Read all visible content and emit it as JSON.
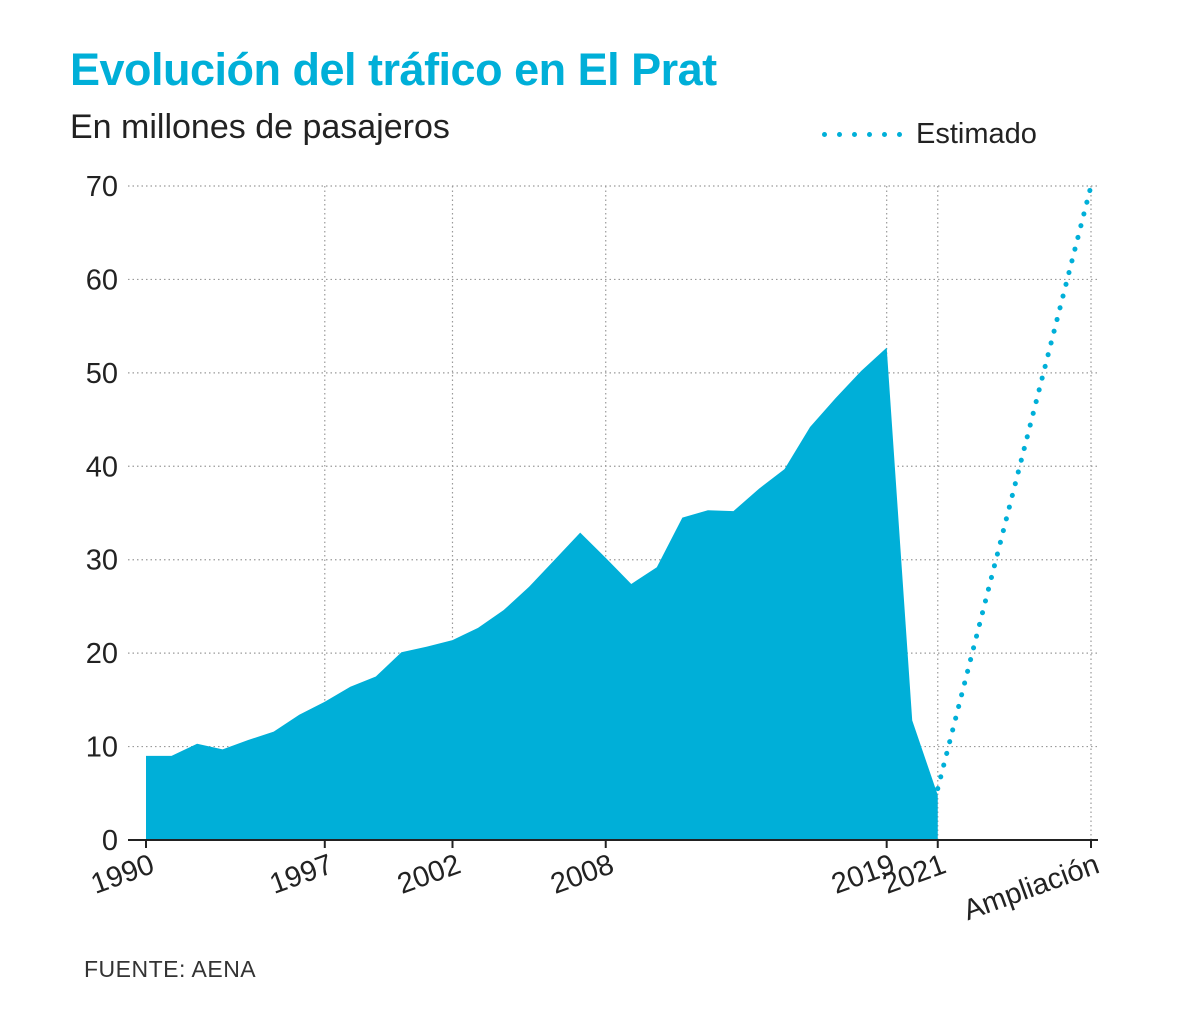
{
  "title": "Evolución del tráfico en El Prat",
  "subtitle": "En millones de pasajeros",
  "source": "FUENTE: AENA",
  "legend": {
    "estimated_label": "Estimado"
  },
  "colors": {
    "accent": "#00afd8",
    "grid": "#9a9a9a",
    "axis": "#222222"
  },
  "chart_data": {
    "type": "area",
    "title": "Evolución del tráfico en El Prat",
    "subtitle": "En millones de pasajeros",
    "xlabel": "",
    "ylabel": "",
    "ylim": [
      0,
      70
    ],
    "yticks": [
      0,
      10,
      20,
      30,
      40,
      50,
      60,
      70
    ],
    "xlim": [
      1990,
      2027
    ],
    "xtick_labels": [
      {
        "label": "1990",
        "x": 1990
      },
      {
        "label": "1997",
        "x": 1997
      },
      {
        "label": "2002",
        "x": 2002
      },
      {
        "label": "2008",
        "x": 2008
      },
      {
        "label": "2019",
        "x": 2019
      },
      {
        "label": "2021",
        "x": 2021
      },
      {
        "label": "Ampliación",
        "x": 2027
      }
    ],
    "grid": true,
    "legend_position": "top-right",
    "series": [
      {
        "x": [
          1990,
          1991,
          1992,
          1993,
          1994,
          1995,
          1996,
          1997,
          1998,
          1999,
          2000,
          2001,
          2002,
          2003,
          2004,
          2005,
          2006,
          2007,
          2008,
          2009,
          2010,
          2011,
          2012,
          2013,
          2014,
          2015,
          2016,
          2017,
          2018,
          2019,
          2020,
          2021
        ],
        "values": [
          9.0,
          9.0,
          10.3,
          9.7,
          10.7,
          11.6,
          13.4,
          14.8,
          16.4,
          17.5,
          20.1,
          20.7,
          21.4,
          22.7,
          24.6,
          27.1,
          30.0,
          32.9,
          30.2,
          27.4,
          29.2,
          34.5,
          35.3,
          35.2,
          37.6,
          39.7,
          44.2,
          47.3,
          50.2,
          52.7,
          12.8,
          4.8
        ],
        "style": "filled-area"
      },
      {
        "name": "Estimado",
        "x": [
          2021,
          2027
        ],
        "values": [
          5.5,
          70.0
        ],
        "style": "dotted-line"
      }
    ]
  }
}
